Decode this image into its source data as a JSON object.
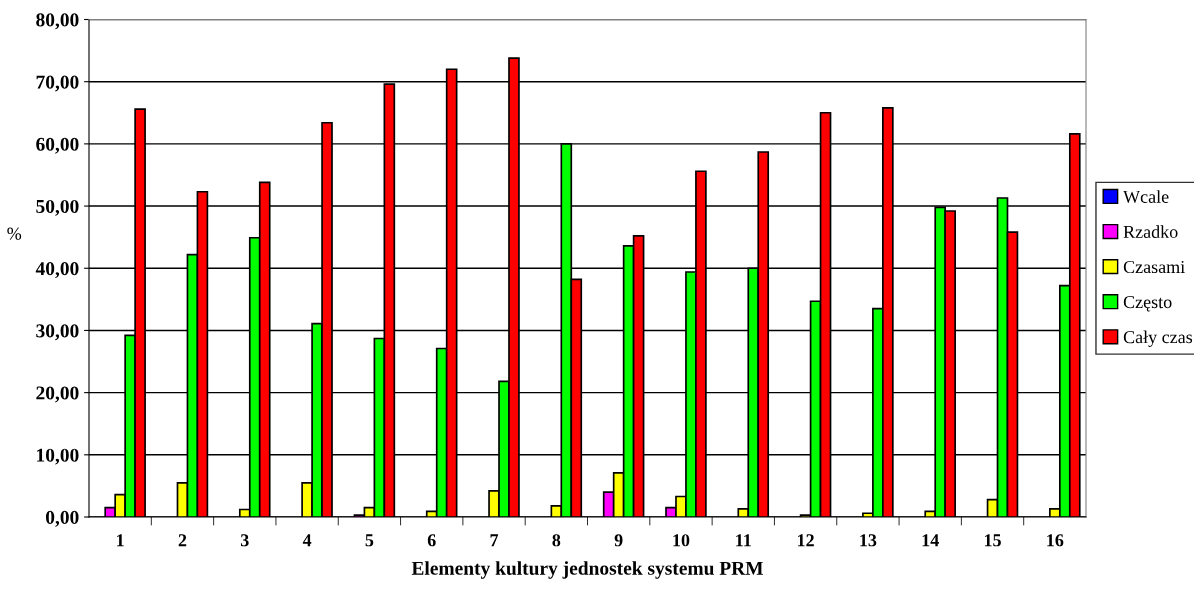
{
  "chart_data": {
    "type": "bar",
    "xlabel": "Elementy kultury jednostek systemu PRM",
    "ylabel": "%",
    "categories": [
      "1",
      "2",
      "3",
      "4",
      "5",
      "6",
      "7",
      "8",
      "9",
      "10",
      "11",
      "12",
      "13",
      "14",
      "15",
      "16"
    ],
    "series": [
      {
        "name": "Wcale",
        "color": "#0000ff",
        "values": [
          0,
          0,
          0,
          0,
          0,
          0,
          0,
          0,
          0,
          0,
          0,
          0,
          0,
          0,
          0,
          0
        ]
      },
      {
        "name": "Rzadko",
        "color": "#ff00ff",
        "values": [
          1.5,
          0,
          0,
          0,
          0.3,
          0,
          0,
          0,
          4.0,
          1.5,
          0,
          0,
          0,
          0,
          0,
          0
        ]
      },
      {
        "name": "Czasami",
        "color": "#ffff00",
        "values": [
          3.6,
          5.5,
          1.2,
          5.5,
          1.5,
          0.9,
          4.2,
          1.8,
          7.1,
          3.3,
          1.3,
          0.3,
          0.6,
          0.9,
          2.8,
          1.3
        ]
      },
      {
        "name": "Często",
        "color": "#00ff00",
        "values": [
          29.2,
          42.2,
          44.9,
          31.1,
          28.7,
          27.1,
          21.8,
          60.0,
          43.6,
          39.4,
          40.0,
          34.7,
          33.5,
          49.8,
          51.3,
          37.2
        ]
      },
      {
        "name": "Cały czas",
        "color": "#ff0000",
        "values": [
          65.6,
          52.3,
          53.8,
          63.4,
          69.6,
          72.0,
          73.8,
          38.2,
          45.2,
          55.6,
          58.7,
          65.0,
          65.8,
          49.2,
          45.8,
          61.6
        ]
      }
    ],
    "ylim": [
      0,
      80
    ],
    "yticks": [
      {
        "value": 0,
        "label": "0,00"
      },
      {
        "value": 10,
        "label": "10,00"
      },
      {
        "value": 20,
        "label": "20,00"
      },
      {
        "value": 30,
        "label": "30,00"
      },
      {
        "value": 40,
        "label": "40,00"
      },
      {
        "value": 50,
        "label": "50,00"
      },
      {
        "value": 60,
        "label": "60,00"
      },
      {
        "value": 70,
        "label": "70,00"
      },
      {
        "value": 80,
        "label": "80,00"
      }
    ],
    "grid": "y",
    "legend": "right"
  }
}
